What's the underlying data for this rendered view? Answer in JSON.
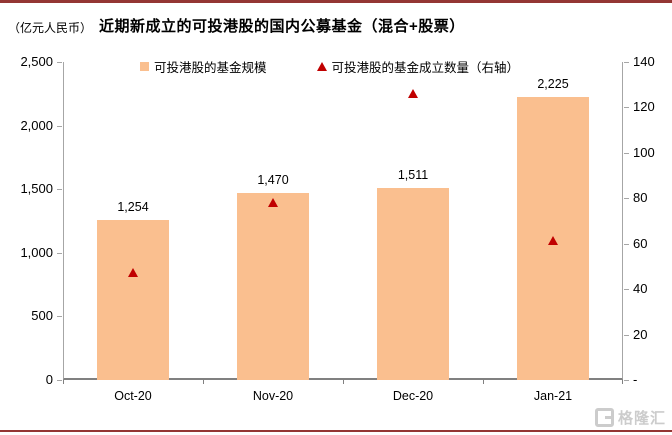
{
  "header": {
    "unit_label": "（亿元人民币）",
    "title": "近期新成立的可投港股的国内公募基金（混合+股票）"
  },
  "legend": {
    "items": [
      {
        "label": "可投港股的基金规模",
        "marker": "square",
        "color": "#FABF8F"
      },
      {
        "label": "可投港股的基金成立数量（右轴）",
        "marker": "triangle",
        "color": "#C00000"
      }
    ]
  },
  "watermark": {
    "logo": "G",
    "text": "格隆汇"
  },
  "colors": {
    "bar": "#FABF8F",
    "triangle": "#C00000",
    "rule": "#943634",
    "axis_line": "#A6A6A6",
    "text": "#000000",
    "watermark": "#CCCCCC"
  },
  "chart_data": {
    "type": "combo",
    "title": "近期新成立的可投港股的国内公募基金（混合+股票）",
    "unit_label": "（亿元人民币）",
    "categories": [
      "Oct-20",
      "Nov-20",
      "Dec-20",
      "Jan-21"
    ],
    "series": [
      {
        "name": "可投港股的基金规模",
        "type": "bar",
        "axis": "left",
        "color": "#FABF8F",
        "values": [
          1254,
          1470,
          1511,
          2225
        ],
        "data_labels": [
          "1,254",
          "1,470",
          "1,511",
          "2,225"
        ]
      },
      {
        "name": "可投港股的基金成立数量（右轴）",
        "type": "scatter",
        "marker": "triangle",
        "axis": "right",
        "color": "#C00000",
        "values": [
          47,
          78,
          126,
          61
        ]
      }
    ],
    "left_axis": {
      "min": 0,
      "max": 2500,
      "step": 500,
      "tick_labels": [
        "0",
        "500",
        "1,000",
        "1,500",
        "2,000",
        "2,500"
      ]
    },
    "right_axis": {
      "min": 0,
      "max": 140,
      "step": 20,
      "tick_labels": [
        "-",
        "20",
        "40",
        "60",
        "80",
        "100",
        "120",
        "140"
      ]
    },
    "grid": false,
    "legend_position": "top"
  }
}
